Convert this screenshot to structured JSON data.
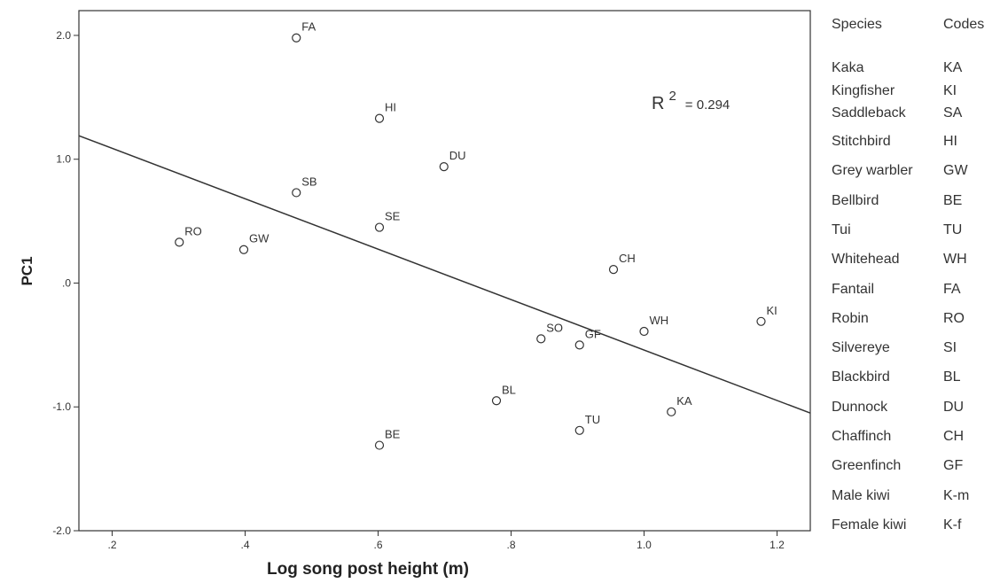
{
  "chart_data": {
    "type": "scatter",
    "title": "",
    "xlabel": "Log song post height (m)",
    "ylabel": "PC1",
    "xlim": [
      0.15,
      1.25
    ],
    "ylim": [
      -2.0,
      2.2
    ],
    "x_ticks": [
      {
        "value": 0.2,
        "label": ".2"
      },
      {
        "value": 0.4,
        "label": ".4"
      },
      {
        "value": 0.6,
        "label": ".6"
      },
      {
        "value": 0.8,
        "label": ".8"
      },
      {
        "value": 1.0,
        "label": "1.0"
      },
      {
        "value": 1.2,
        "label": "1.2"
      }
    ],
    "y_ticks": [
      {
        "value": 2.0,
        "label": "2.0"
      },
      {
        "value": 1.0,
        "label": "1.0"
      },
      {
        "value": 0.0,
        "label": ".0"
      },
      {
        "value": -1.0,
        "label": "-1.0"
      },
      {
        "value": -2.0,
        "label": "-2.0"
      }
    ],
    "grid": false,
    "marker": "open-circle",
    "points": [
      {
        "label": "FA",
        "x": 0.477,
        "y": 1.98
      },
      {
        "label": "HI",
        "x": 0.602,
        "y": 1.33
      },
      {
        "label": "DU",
        "x": 0.699,
        "y": 0.94
      },
      {
        "label": "SB",
        "x": 0.477,
        "y": 0.73
      },
      {
        "label": "SE",
        "x": 0.602,
        "y": 0.45
      },
      {
        "label": "RO",
        "x": 0.301,
        "y": 0.33
      },
      {
        "label": "GW",
        "x": 0.398,
        "y": 0.27
      },
      {
        "label": "CH",
        "x": 0.954,
        "y": 0.11
      },
      {
        "label": "KI",
        "x": 1.176,
        "y": -0.31
      },
      {
        "label": "WH",
        "x": 1.0,
        "y": -0.39
      },
      {
        "label": "SO",
        "x": 0.845,
        "y": -0.45
      },
      {
        "label": "GF",
        "x": 0.903,
        "y": -0.5
      },
      {
        "label": "BL",
        "x": 0.778,
        "y": -0.95
      },
      {
        "label": "KA",
        "x": 1.041,
        "y": -1.04
      },
      {
        "label": "TU",
        "x": 0.903,
        "y": -1.19
      },
      {
        "label": "BE",
        "x": 0.602,
        "y": -1.31
      }
    ],
    "fit_line": {
      "x": [
        0.15,
        1.25
      ],
      "y": [
        1.19,
        -1.05
      ]
    },
    "annotation": {
      "r_label": "R",
      "r_exp": "2",
      "value": "= 0.294"
    }
  },
  "legend_table": {
    "headers": {
      "species": "Species",
      "codes": "Codes"
    },
    "rows": [
      {
        "species": "Kaka",
        "code": "KA"
      },
      {
        "species": "Kingfisher",
        "code": "KI"
      },
      {
        "species": "Saddleback",
        "code": "SA"
      },
      {
        "species": "Stitchbird",
        "code": "HI"
      },
      {
        "species": "Grey warbler",
        "code": "GW"
      },
      {
        "species": "Bellbird",
        "code": "BE"
      },
      {
        "species": "Tui",
        "code": "TU"
      },
      {
        "species": "Whitehead",
        "code": "WH"
      },
      {
        "species": "Fantail",
        "code": "FA"
      },
      {
        "species": "Robin",
        "code": "RO"
      },
      {
        "species": "Silvereye",
        "code": "SI"
      },
      {
        "species": "Blackbird",
        "code": "BL"
      },
      {
        "species": "Dunnock",
        "code": "DU"
      },
      {
        "species": "Chaffinch",
        "code": "CH"
      },
      {
        "species": "Greenfinch",
        "code": "GF"
      },
      {
        "species": "Male kiwi",
        "code": "K-m"
      },
      {
        "species": "Female kiwi",
        "code": "K-f"
      }
    ]
  }
}
